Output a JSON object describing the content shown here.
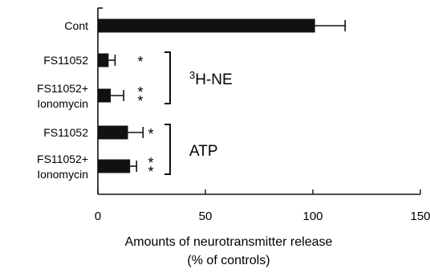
{
  "chart_data": {
    "type": "bar",
    "orientation": "horizontal",
    "categories": [
      [
        "Cont"
      ],
      [
        "FS11052"
      ],
      [
        "FS11052+",
        "Ionomycin"
      ],
      [
        "FS11052"
      ],
      [
        "FS11052+",
        "Ionomycin"
      ]
    ],
    "values": [
      101,
      5,
      6,
      14,
      15
    ],
    "errors": [
      14,
      3,
      6,
      7,
      3
    ],
    "significance": [
      "",
      "*",
      "**",
      "*",
      "**"
    ],
    "groups": [
      {
        "label_prefix": "3",
        "label_main": "H-NE",
        "members": [
          1,
          2
        ]
      },
      {
        "label_prefix": "",
        "label_main": "ATP",
        "members": [
          3,
          4
        ]
      }
    ],
    "xlim": [
      0,
      150
    ],
    "xticks": [
      0,
      50,
      100,
      150
    ],
    "xlabel": [
      "Amounts of neurotransmitter release",
      "(% of controls)"
    ],
    "title": "",
    "bar_color": "#111111",
    "grid": false
  }
}
